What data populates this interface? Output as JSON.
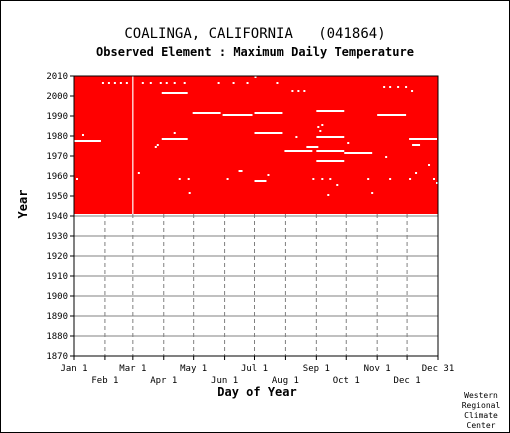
{
  "header": {
    "title": "COALINGA, CALIFORNIA   (041864)",
    "subtitle": "Observed Element : Maximum Daily Temperature"
  },
  "credit": [
    "Western",
    "Regional",
    "Climate",
    "Center"
  ],
  "colors": {
    "record": "#ff0000",
    "missing": "#ffffff",
    "grid": "#808080",
    "axis": "#000000"
  },
  "chart_data": {
    "type": "heatmap",
    "xlabel": "Day of Year",
    "ylabel": "Year",
    "xlim": [
      1,
      366
    ],
    "ylim": [
      1870,
      2010
    ],
    "yticks": [
      1870,
      1880,
      1890,
      1900,
      1910,
      1920,
      1930,
      1940,
      1950,
      1960,
      1970,
      1980,
      1990,
      2000,
      2010
    ],
    "xticks_top": [
      {
        "label": "Jan 1",
        "day": 1
      },
      {
        "label": "Mar 1",
        "day": 60
      },
      {
        "label": "May 1",
        "day": 121
      },
      {
        "label": "Jul 1",
        "day": 182
      },
      {
        "label": "Sep 1",
        "day": 244
      },
      {
        "label": "Nov 1",
        "day": 305
      },
      {
        "label": "Dec 31",
        "day": 366
      }
    ],
    "xticks_bottom": [
      {
        "label": "Feb 1",
        "day": 32
      },
      {
        "label": "Apr 1",
        "day": 91
      },
      {
        "label": "Jun 1",
        "day": 152
      },
      {
        "label": "Aug 1",
        "day": 213
      },
      {
        "label": "Oct 1",
        "day": 274
      },
      {
        "label": "Dec 1",
        "day": 335
      }
    ],
    "data_period": {
      "start_year": 1941,
      "end_year": 2010,
      "status": "observed"
    },
    "missing_columns": [
      {
        "day": 60,
        "start_year": 1941,
        "end_year": 2010
      }
    ],
    "missing_segments": [
      {
        "year": 1977.5,
        "start_day": 1,
        "end_day": 28
      },
      {
        "year": 2001.5,
        "start_day": 89,
        "end_day": 115
      },
      {
        "year": 1978.5,
        "start_day": 89,
        "end_day": 115
      },
      {
        "year": 1991.5,
        "start_day": 120,
        "end_day": 148
      },
      {
        "year": 1990.5,
        "start_day": 150,
        "end_day": 180
      },
      {
        "year": 1991.5,
        "start_day": 182,
        "end_day": 210
      },
      {
        "year": 1981.5,
        "start_day": 182,
        "end_day": 210
      },
      {
        "year": 1957.5,
        "start_day": 182,
        "end_day": 194
      },
      {
        "year": 1962.5,
        "start_day": 166,
        "end_day": 170
      },
      {
        "year": 1972.5,
        "start_day": 212,
        "end_day": 240
      },
      {
        "year": 1974.5,
        "start_day": 234,
        "end_day": 246
      },
      {
        "year": 1972.5,
        "start_day": 244,
        "end_day": 272
      },
      {
        "year": 1967.5,
        "start_day": 244,
        "end_day": 272
      },
      {
        "year": 1992.5,
        "start_day": 244,
        "end_day": 272
      },
      {
        "year": 1979.5,
        "start_day": 244,
        "end_day": 272
      },
      {
        "year": 1971.5,
        "start_day": 272,
        "end_day": 300
      },
      {
        "year": 1990.5,
        "start_day": 305,
        "end_day": 334
      },
      {
        "year": 1978.5,
        "start_day": 337,
        "end_day": 365
      },
      {
        "year": 1975.5,
        "start_day": 340,
        "end_day": 348
      }
    ],
    "missing_points": [
      {
        "year": 2006.5,
        "day": 30
      },
      {
        "year": 2006.5,
        "day": 36
      },
      {
        "year": 2006.5,
        "day": 42
      },
      {
        "year": 2006.5,
        "day": 48
      },
      {
        "year": 2006.5,
        "day": 54
      },
      {
        "year": 2006.5,
        "day": 70
      },
      {
        "year": 2006.5,
        "day": 78
      },
      {
        "year": 2006.5,
        "day": 88
      },
      {
        "year": 2006.5,
        "day": 94
      },
      {
        "year": 2006.5,
        "day": 102
      },
      {
        "year": 2006.5,
        "day": 112
      },
      {
        "year": 2006.5,
        "day": 146
      },
      {
        "year": 2006.5,
        "day": 161
      },
      {
        "year": 2006.5,
        "day": 175
      },
      {
        "year": 2006.5,
        "day": 205
      },
      {
        "year": 2004.5,
        "day": 312
      },
      {
        "year": 2004.5,
        "day": 318
      },
      {
        "year": 2004.5,
        "day": 326
      },
      {
        "year": 2004.5,
        "day": 334
      },
      {
        "year": 2002.5,
        "day": 220
      },
      {
        "year": 2002.5,
        "day": 226
      },
      {
        "year": 2002.5,
        "day": 232
      },
      {
        "year": 2002.5,
        "day": 340
      },
      {
        "year": 2009.5,
        "day": 183
      },
      {
        "year": 1980.5,
        "day": 10
      },
      {
        "year": 1979.5,
        "day": 224
      },
      {
        "year": 1976.5,
        "day": 276
      },
      {
        "year": 1975.5,
        "day": 85
      },
      {
        "year": 1974.5,
        "day": 83
      },
      {
        "year": 1958.5,
        "day": 4
      },
      {
        "year": 1958.5,
        "day": 107
      },
      {
        "year": 1958.5,
        "day": 116
      },
      {
        "year": 1958.5,
        "day": 155
      },
      {
        "year": 1958.5,
        "day": 241
      },
      {
        "year": 1958.5,
        "day": 250
      },
      {
        "year": 1958.5,
        "day": 258
      },
      {
        "year": 1958.5,
        "day": 296
      },
      {
        "year": 1958.5,
        "day": 318
      },
      {
        "year": 1958.5,
        "day": 338
      },
      {
        "year": 1958.5,
        "day": 362
      },
      {
        "year": 1956.5,
        "day": 365
      },
      {
        "year": 1951.5,
        "day": 117
      },
      {
        "year": 1950.5,
        "day": 256
      },
      {
        "year": 1951.5,
        "day": 300
      },
      {
        "year": 1955.5,
        "day": 265
      },
      {
        "year": 1961.5,
        "day": 66
      },
      {
        "year": 1965.5,
        "day": 357
      },
      {
        "year": 1969.5,
        "day": 314
      },
      {
        "year": 1981.5,
        "day": 102
      },
      {
        "year": 1982.5,
        "day": 248
      },
      {
        "year": 1984.5,
        "day": 246
      },
      {
        "year": 1985.5,
        "day": 250
      },
      {
        "year": 1960.5,
        "day": 196
      },
      {
        "year": 1961.5,
        "day": 344
      }
    ]
  }
}
